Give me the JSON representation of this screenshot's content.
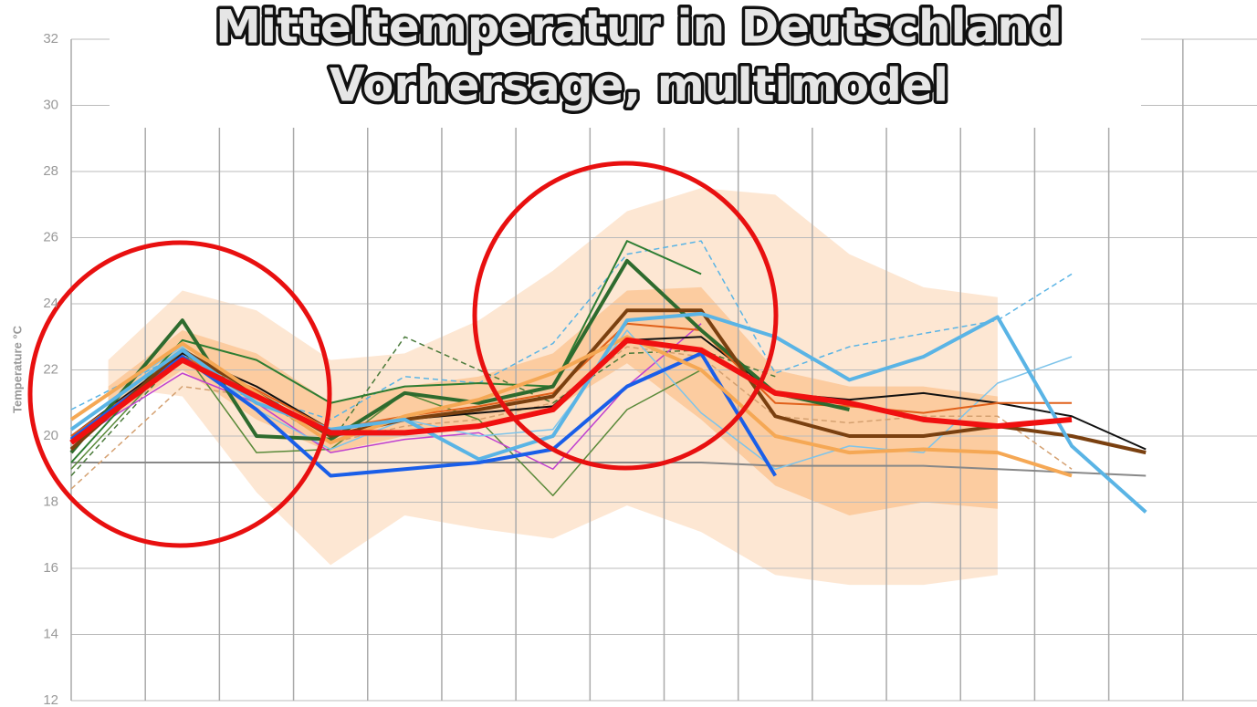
{
  "chart_data": {
    "type": "line",
    "title": "Mitteltemperatur in Deutschland",
    "subtitle": "Vorhersage, multimodel",
    "y_label": "Temperature °C",
    "xlim": [
      0,
      16
    ],
    "xticks": [
      0,
      1,
      2,
      3,
      4,
      5,
      6,
      7,
      8,
      9,
      10,
      11,
      12,
      13,
      14,
      15
    ],
    "ylim": [
      12,
      32
    ],
    "yticks": [
      12,
      14,
      16,
      18,
      20,
      22,
      24,
      26,
      28,
      30,
      32
    ],
    "grid": true,
    "x": [
      0,
      1.5,
      2.5,
      3.5,
      4.5,
      5.5,
      6.5,
      7.5,
      8.5,
      9.5,
      10.5,
      11.5,
      12.5,
      13.5,
      14.5
    ],
    "bands": [
      {
        "color": "#fde3cb",
        "x": [
          0.5,
          1.5,
          2.5,
          3.5,
          4.5,
          5.5,
          6.5,
          7.5,
          8.5,
          9.5,
          10.5,
          11.5,
          12.5
        ],
        "upper": [
          22.3,
          24.4,
          23.8,
          22.3,
          22.5,
          23.5,
          25,
          26.8,
          27.5,
          27.3,
          25.5,
          24.5,
          24.2
        ],
        "lower": [
          21.5,
          21.2,
          18.3,
          16.1,
          17.6,
          17.2,
          16.9,
          17.9,
          17.1,
          15.8,
          15.5,
          15.5,
          15.8
        ]
      },
      {
        "color": "#fbc796",
        "x": [
          0.5,
          1.5,
          2.5,
          3.5,
          4.5,
          5.5,
          6.5,
          7.5,
          8.5,
          9.5,
          10.5,
          11.5,
          12.5
        ],
        "upper": [
          21.5,
          23.2,
          22.5,
          21,
          21.5,
          21.8,
          22.5,
          24.4,
          24.5,
          22,
          21.5,
          21.5,
          21.2
        ],
        "lower": [
          20.5,
          22,
          20.5,
          19.5,
          20,
          20.3,
          20.8,
          22.2,
          20.5,
          18.5,
          17.6,
          18,
          17.8
        ]
      }
    ],
    "series": [
      {
        "color": "#888888",
        "width": 2,
        "values": [
          19.2,
          19.2,
          19.2,
          19.2,
          19.2,
          19.2,
          19.2,
          19.2,
          19.2,
          19.1,
          19.1,
          19.1,
          19.0,
          18.9,
          18.8
        ]
      },
      {
        "color": "#d4a070",
        "width": 1.5,
        "dash": true,
        "values": [
          18.4,
          21.5,
          21.2,
          19.8,
          20.3,
          20.5,
          21.0,
          22.7,
          22.4,
          20.6,
          20.4,
          20.6,
          20.6,
          19.0,
          null
        ]
      },
      {
        "color": "#5a8a3a",
        "width": 1.5,
        "values": [
          19.0,
          22.6,
          19.5,
          19.6,
          21.3,
          20.5,
          18.2,
          20.8,
          22.0,
          null,
          null,
          null,
          null,
          null,
          null
        ]
      },
      {
        "color": "#4a7a3a",
        "width": 1.5,
        "dash": true,
        "values": [
          18.8,
          22.5,
          21.2,
          19.8,
          23.0,
          22.0,
          21.0,
          22.5,
          22.6,
          21.8,
          null,
          null,
          null,
          null,
          null
        ]
      },
      {
        "color": "#c040d0",
        "width": 1.5,
        "values": [
          19.8,
          21.9,
          21.0,
          19.5,
          19.9,
          20.1,
          19.0,
          21.5,
          23.4,
          null,
          null,
          null,
          null,
          null,
          null
        ]
      },
      {
        "color": "#7ec4ea",
        "width": 1.5,
        "values": [
          20.5,
          22.7,
          20.8,
          19.6,
          20.5,
          20.0,
          20.2,
          23.2,
          20.7,
          19.0,
          19.7,
          19.5,
          21.6,
          22.4,
          null
        ]
      },
      {
        "color": "#5ab4e5",
        "width": 1.5,
        "dash": true,
        "values": [
          20.8,
          22.5,
          21.2,
          20.5,
          21.8,
          21.6,
          22.8,
          25.5,
          25.9,
          21.9,
          22.7,
          23.1,
          23.5,
          24.9,
          null
        ]
      },
      {
        "color": "#2e7d32",
        "width": 2,
        "values": [
          19.2,
          22.9,
          22.3,
          21.0,
          21.5,
          21.6,
          21.5,
          25.9,
          24.9,
          null,
          null,
          null,
          null,
          null,
          null
        ]
      },
      {
        "color": "#111111",
        "width": 2,
        "values": [
          20.0,
          22.5,
          21.5,
          20.2,
          20.5,
          20.7,
          20.9,
          22.9,
          23.0,
          21.3,
          21.1,
          21.3,
          21.0,
          20.6,
          19.6
        ]
      },
      {
        "color": "#e0601a",
        "width": 2,
        "values": [
          20.0,
          22.4,
          21.4,
          20.2,
          20.6,
          20.9,
          21.3,
          23.4,
          23.2,
          21.0,
          20.9,
          20.7,
          21.0,
          21.0,
          null
        ]
      },
      {
        "color": "#2e6b2e",
        "width": 4,
        "values": [
          19.5,
          23.5,
          20.0,
          19.9,
          21.3,
          21.0,
          21.5,
          25.3,
          23.2,
          21.3,
          20.8,
          null,
          null,
          null,
          null
        ]
      },
      {
        "color": "#1a5ee8",
        "width": 4,
        "values": [
          19.9,
          22.4,
          20.8,
          18.8,
          19.0,
          19.2,
          19.6,
          21.5,
          22.5,
          18.8,
          null,
          null,
          null,
          null,
          null
        ]
      },
      {
        "color": "#7a4010",
        "width": 4,
        "values": [
          19.6,
          22.6,
          21.3,
          20.0,
          20.5,
          20.8,
          21.2,
          23.8,
          23.8,
          20.6,
          20.0,
          20.0,
          20.3,
          20.0,
          19.5
        ]
      },
      {
        "color": "#f5a855",
        "width": 4,
        "values": [
          20.5,
          22.8,
          21.3,
          19.8,
          20.6,
          21.1,
          21.9,
          23.0,
          22.0,
          20.0,
          19.5,
          19.6,
          19.5,
          18.8,
          null
        ]
      },
      {
        "color": "#5ab4e5",
        "width": 4,
        "values": [
          20.2,
          22.6,
          21.0,
          20.2,
          20.5,
          19.3,
          20.0,
          23.5,
          23.7,
          23.0,
          21.7,
          22.4,
          23.6,
          19.7,
          17.7
        ]
      },
      {
        "color": "#f01010",
        "width": 6,
        "values": [
          19.8,
          22.3,
          21.2,
          20.1,
          20.1,
          20.3,
          20.8,
          22.9,
          22.6,
          21.3,
          21.0,
          20.5,
          20.3,
          20.5,
          null
        ]
      }
    ]
  }
}
